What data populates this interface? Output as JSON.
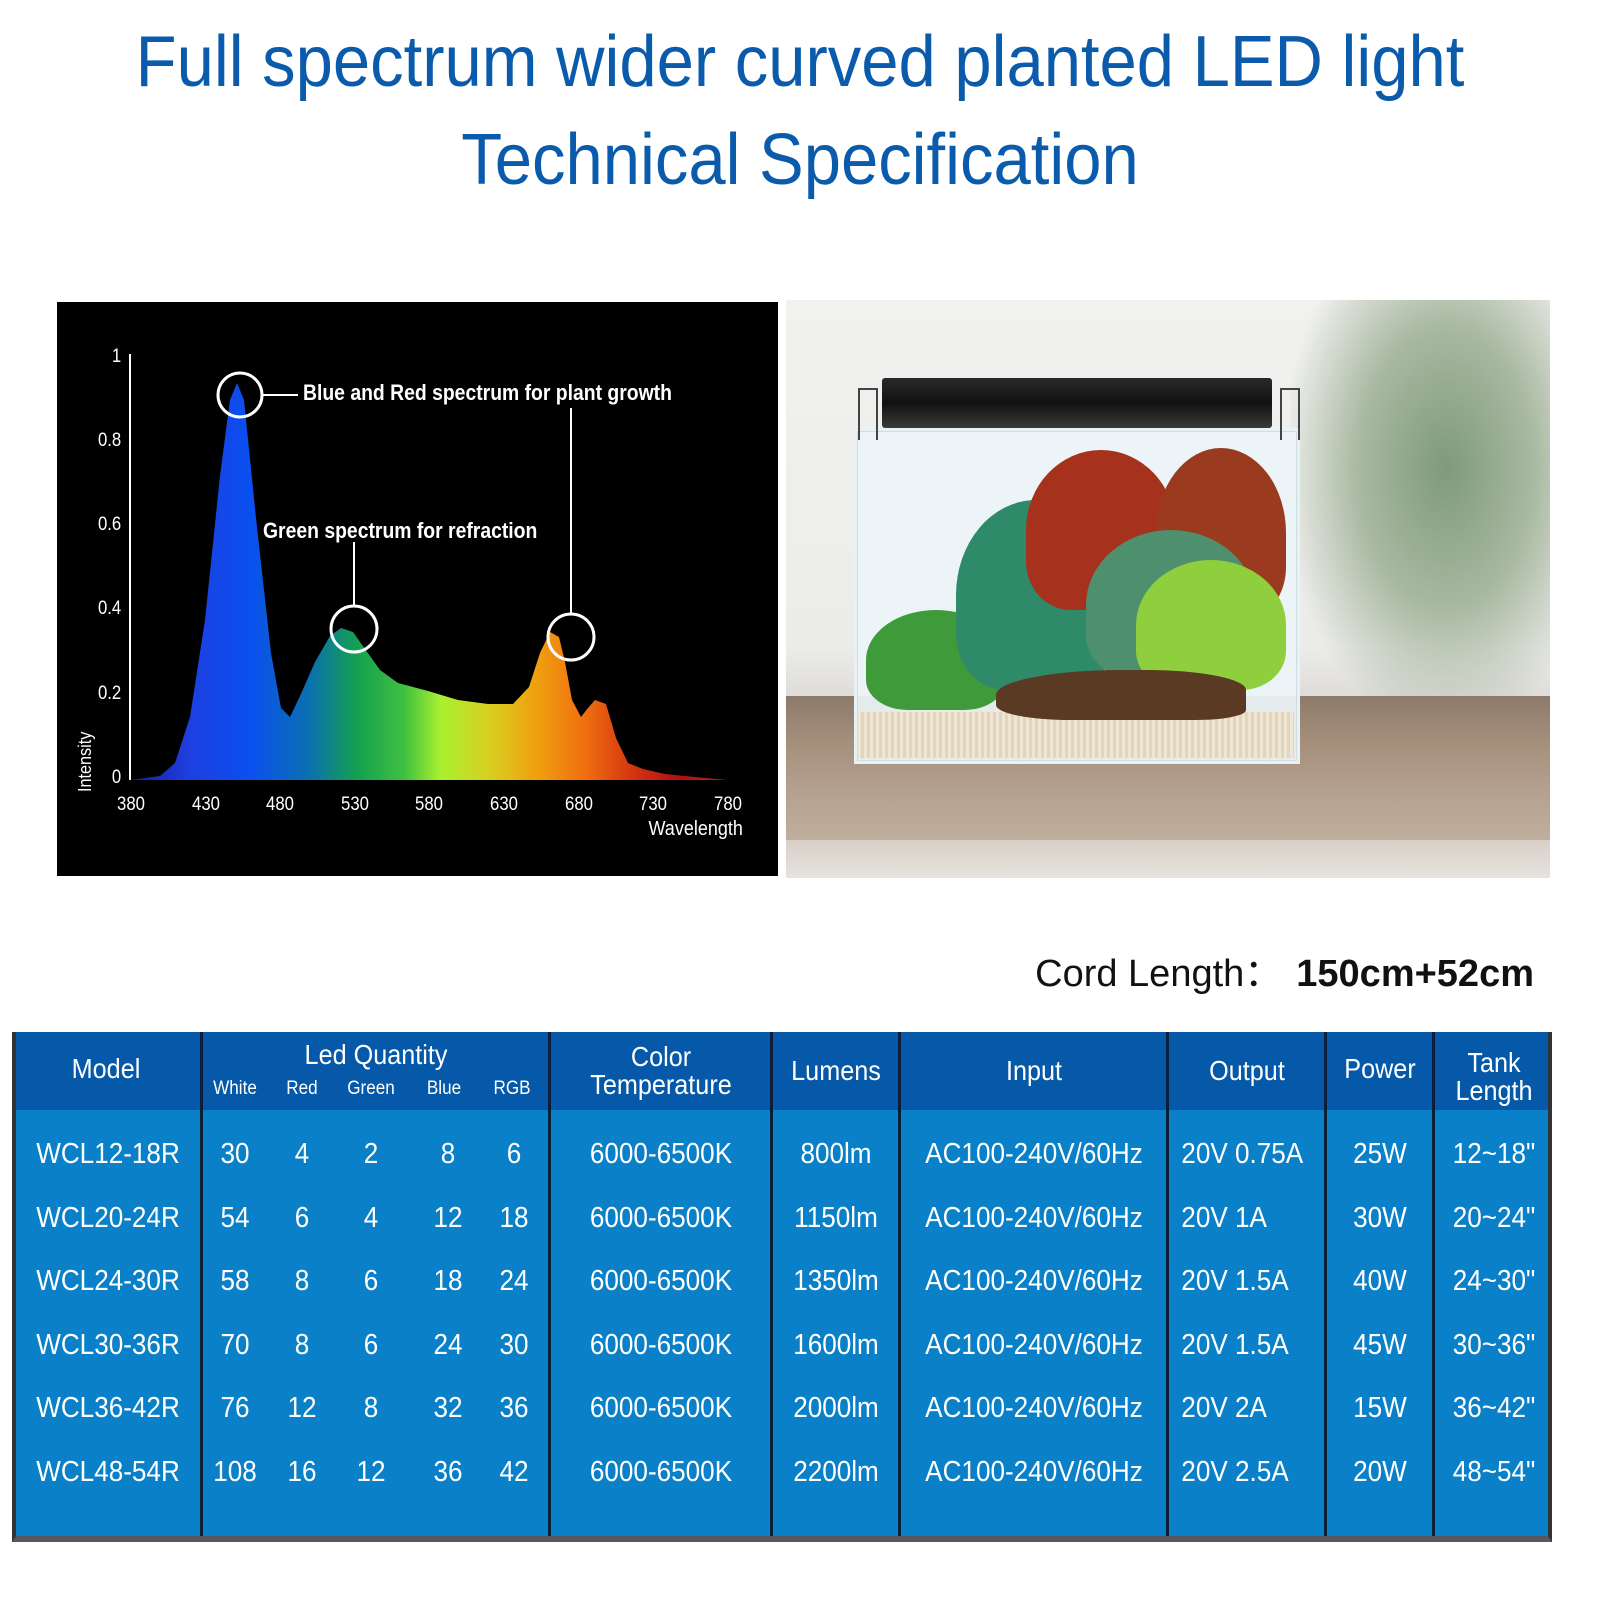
{
  "title": {
    "line1": "Full spectrum wider curved planted LED light",
    "line2": "Technical Specification"
  },
  "chart_data": {
    "type": "area",
    "title": "",
    "xlabel": "Wavelength",
    "ylabel": "Intensity",
    "xlim": [
      380,
      780
    ],
    "ylim": [
      0,
      1
    ],
    "x_ticks": [
      "380",
      "430",
      "480",
      "530",
      "580",
      "630",
      "680",
      "730",
      "780"
    ],
    "y_ticks": [
      "0",
      "0.2",
      "0.4",
      "0.6",
      "0.8",
      "1"
    ],
    "grid": false,
    "background": "#000000",
    "fill": "visible spectrum gradient (blue → green → yellow → orange → red)",
    "x": [
      380,
      400,
      410,
      420,
      430,
      440,
      447,
      452,
      457,
      465,
      475,
      482,
      488,
      495,
      505,
      515,
      522,
      530,
      538,
      548,
      560,
      580,
      600,
      620,
      637,
      648,
      655,
      662,
      668,
      672,
      677,
      683,
      688,
      693,
      700,
      707,
      715,
      725,
      740,
      760,
      780
    ],
    "values": [
      0.0,
      0.01,
      0.04,
      0.15,
      0.38,
      0.72,
      0.9,
      0.94,
      0.9,
      0.62,
      0.3,
      0.17,
      0.15,
      0.2,
      0.28,
      0.34,
      0.36,
      0.35,
      0.31,
      0.26,
      0.23,
      0.21,
      0.19,
      0.18,
      0.18,
      0.22,
      0.3,
      0.35,
      0.34,
      0.28,
      0.19,
      0.15,
      0.17,
      0.19,
      0.18,
      0.1,
      0.04,
      0.025,
      0.015,
      0.008,
      0.0
    ],
    "annotations": [
      {
        "text": "Blue and Red spectrum for plant growth",
        "targets": [
          452,
          668
        ]
      },
      {
        "text": "Green spectrum for refraction",
        "targets": [
          530
        ]
      }
    ]
  },
  "chart": {
    "y_axis_title": "Intensity",
    "x_axis_title": "Wavelength",
    "annotation_blue_red": "Blue and Red spectrum for plant growth",
    "annotation_green": "Green spectrum for refraction",
    "y_ticks": [
      "1",
      "0.8",
      "0.6",
      "0.4",
      "0.2",
      "0"
    ],
    "x_ticks": [
      "380",
      "430",
      "480",
      "530",
      "580",
      "630",
      "680",
      "730",
      "780"
    ]
  },
  "photo": {
    "description": "Planted aquarium tank with black LED light bar on top"
  },
  "cord": {
    "label": "Cord Length：",
    "value": "150cm+52cm"
  },
  "spec_table": {
    "header_color": "#0559a8",
    "body_color": "#0a80c9",
    "headers": {
      "model": "Model",
      "led_quantity": "Led Quantity",
      "led_sub": [
        "White",
        "Red",
        "Green",
        "Blue",
        "RGB"
      ],
      "color_temp_1": "Color",
      "color_temp_2": "Temperature",
      "lumens": "Lumens",
      "input": "Input",
      "output": "Output",
      "power": "Power",
      "tank_1": "Tank",
      "tank_2": "Length"
    },
    "rows": [
      {
        "model": "WCL12-18R",
        "white": "30",
        "red": "4",
        "green": "2",
        "blue": "8",
        "rgb": "6",
        "color_temp": "6000-6500K",
        "lumens": "800lm",
        "input": "AC100-240V/60Hz",
        "output": "20V 0.75A",
        "power": "25W",
        "tank": "12~18\""
      },
      {
        "model": "WCL20-24R",
        "white": "54",
        "red": "6",
        "green": "4",
        "blue": "12",
        "rgb": "18",
        "color_temp": "6000-6500K",
        "lumens": "1150lm",
        "input": "AC100-240V/60Hz",
        "output": "20V 1A",
        "power": "30W",
        "tank": "20~24\""
      },
      {
        "model": "WCL24-30R",
        "white": "58",
        "red": "8",
        "green": "6",
        "blue": "18",
        "rgb": "24",
        "color_temp": "6000-6500K",
        "lumens": "1350lm",
        "input": "AC100-240V/60Hz",
        "output": "20V 1.5A",
        "power": "40W",
        "tank": "24~30\""
      },
      {
        "model": "WCL30-36R",
        "white": "70",
        "red": "8",
        "green": "6",
        "blue": "24",
        "rgb": "30",
        "color_temp": "6000-6500K",
        "lumens": "1600lm",
        "input": "AC100-240V/60Hz",
        "output": "20V 1.5A",
        "power": "45W",
        "tank": "30~36\""
      },
      {
        "model": "WCL36-42R",
        "white": "76",
        "red": "12",
        "green": "8",
        "blue": "32",
        "rgb": "36",
        "color_temp": "6000-6500K",
        "lumens": "2000lm",
        "input": "AC100-240V/60Hz",
        "output": "20V 2A",
        "power": "15W",
        "tank": "36~42\""
      },
      {
        "model": "WCL48-54R",
        "white": "108",
        "red": "16",
        "green": "12",
        "blue": "36",
        "rgb": "42",
        "color_temp": "6000-6500K",
        "lumens": "2200lm",
        "input": "AC100-240V/60Hz",
        "output": "20V 2.5A",
        "power": "20W",
        "tank": "48~54\""
      }
    ]
  }
}
